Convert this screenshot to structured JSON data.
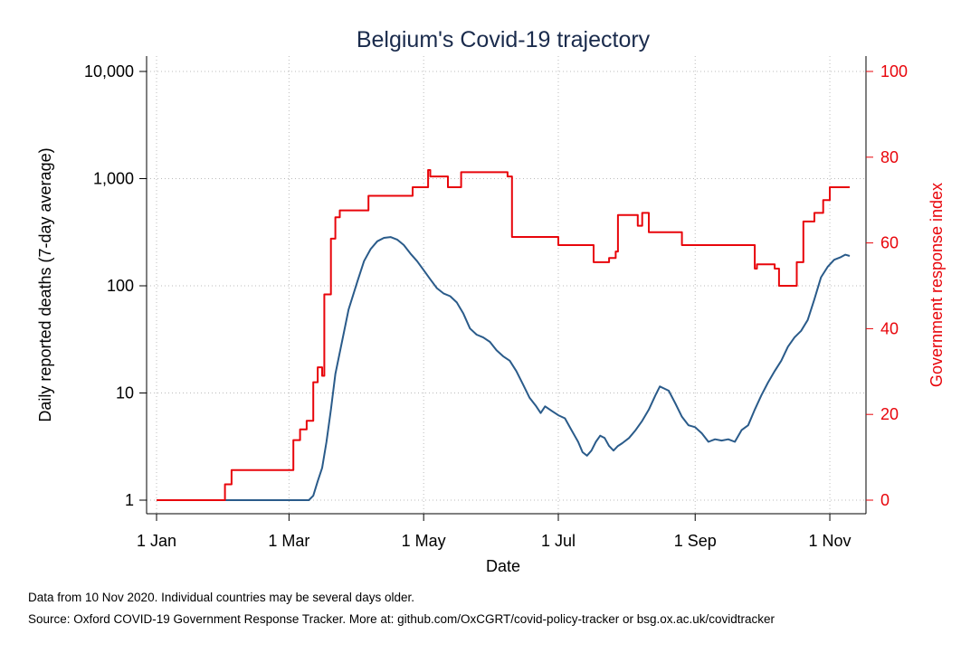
{
  "chart_data": {
    "type": "line",
    "title": "Belgium's Covid-19 trajectory",
    "xlabel": "Date",
    "ylabel_left": "Daily reported deaths (7-day average)",
    "ylabel_right": "Government response index",
    "x_range": [
      "2020-01-01",
      "2020-11-10"
    ],
    "x_ticks": [
      {
        "date": "2020-01-01",
        "label": "1 Jan"
      },
      {
        "date": "2020-03-01",
        "label": "1 Mar"
      },
      {
        "date": "2020-05-01",
        "label": "1 May"
      },
      {
        "date": "2020-07-01",
        "label": "1 Jul"
      },
      {
        "date": "2020-09-01",
        "label": "1 Sep"
      },
      {
        "date": "2020-11-01",
        "label": "1 Nov"
      }
    ],
    "y_left": {
      "scale": "log",
      "range": [
        1,
        10000
      ],
      "ticks": [
        {
          "value": 1,
          "label": "1"
        },
        {
          "value": 10,
          "label": "10"
        },
        {
          "value": 100,
          "label": "100"
        },
        {
          "value": 1000,
          "label": "1,000"
        },
        {
          "value": 10000,
          "label": "10,000"
        }
      ]
    },
    "y_right": {
      "scale": "linear",
      "range": [
        0,
        100
      ],
      "ticks": [
        {
          "value": 0,
          "label": "0"
        },
        {
          "value": 20,
          "label": "20"
        },
        {
          "value": 40,
          "label": "40"
        },
        {
          "value": 60,
          "label": "60"
        },
        {
          "value": 80,
          "label": "80"
        },
        {
          "value": 100,
          "label": "100"
        }
      ]
    },
    "grid": true,
    "series": [
      {
        "axis": "left",
        "color": "#2a5b8a",
        "shape": "line",
        "points": [
          [
            "2020-01-01",
            1
          ],
          [
            "2020-03-10",
            1
          ],
          [
            "2020-03-12",
            1.1
          ],
          [
            "2020-03-14",
            1.5
          ],
          [
            "2020-03-16",
            2
          ],
          [
            "2020-03-18",
            3.5
          ],
          [
            "2020-03-20",
            7
          ],
          [
            "2020-03-22",
            15
          ],
          [
            "2020-03-25",
            30
          ],
          [
            "2020-03-28",
            60
          ],
          [
            "2020-04-01",
            110
          ],
          [
            "2020-04-04",
            170
          ],
          [
            "2020-04-07",
            220
          ],
          [
            "2020-04-10",
            260
          ],
          [
            "2020-04-13",
            280
          ],
          [
            "2020-04-16",
            285
          ],
          [
            "2020-04-19",
            270
          ],
          [
            "2020-04-22",
            240
          ],
          [
            "2020-04-25",
            200
          ],
          [
            "2020-04-28",
            170
          ],
          [
            "2020-05-01",
            140
          ],
          [
            "2020-05-04",
            115
          ],
          [
            "2020-05-07",
            95
          ],
          [
            "2020-05-10",
            85
          ],
          [
            "2020-05-13",
            80
          ],
          [
            "2020-05-16",
            70
          ],
          [
            "2020-05-19",
            55
          ],
          [
            "2020-05-22",
            40
          ],
          [
            "2020-05-25",
            35
          ],
          [
            "2020-05-28",
            33
          ],
          [
            "2020-05-31",
            30
          ],
          [
            "2020-06-03",
            25
          ],
          [
            "2020-06-06",
            22
          ],
          [
            "2020-06-09",
            20
          ],
          [
            "2020-06-12",
            16
          ],
          [
            "2020-06-15",
            12
          ],
          [
            "2020-06-18",
            9
          ],
          [
            "2020-06-21",
            7.5
          ],
          [
            "2020-06-23",
            6.5
          ],
          [
            "2020-06-25",
            7.5
          ],
          [
            "2020-06-28",
            6.8
          ],
          [
            "2020-07-01",
            6.2
          ],
          [
            "2020-07-04",
            5.8
          ],
          [
            "2020-07-07",
            4.5
          ],
          [
            "2020-07-10",
            3.5
          ],
          [
            "2020-07-12",
            2.8
          ],
          [
            "2020-07-14",
            2.6
          ],
          [
            "2020-07-16",
            2.9
          ],
          [
            "2020-07-18",
            3.5
          ],
          [
            "2020-07-20",
            4.0
          ],
          [
            "2020-07-22",
            3.8
          ],
          [
            "2020-07-24",
            3.2
          ],
          [
            "2020-07-26",
            2.9
          ],
          [
            "2020-07-28",
            3.2
          ],
          [
            "2020-07-30",
            3.4
          ],
          [
            "2020-08-02",
            3.8
          ],
          [
            "2020-08-05",
            4.5
          ],
          [
            "2020-08-08",
            5.5
          ],
          [
            "2020-08-11",
            7.0
          ],
          [
            "2020-08-14",
            9.5
          ],
          [
            "2020-08-16",
            11.5
          ],
          [
            "2020-08-18",
            11.0
          ],
          [
            "2020-08-20",
            10.5
          ],
          [
            "2020-08-23",
            8.0
          ],
          [
            "2020-08-26",
            6.0
          ],
          [
            "2020-08-29",
            5.0
          ],
          [
            "2020-09-01",
            4.8
          ],
          [
            "2020-09-04",
            4.2
          ],
          [
            "2020-09-07",
            3.5
          ],
          [
            "2020-09-10",
            3.7
          ],
          [
            "2020-09-13",
            3.6
          ],
          [
            "2020-09-16",
            3.7
          ],
          [
            "2020-09-19",
            3.5
          ],
          [
            "2020-09-22",
            4.5
          ],
          [
            "2020-09-25",
            5.0
          ],
          [
            "2020-09-28",
            7.0
          ],
          [
            "2020-10-01",
            9.5
          ],
          [
            "2020-10-04",
            12.5
          ],
          [
            "2020-10-07",
            16
          ],
          [
            "2020-10-10",
            20
          ],
          [
            "2020-10-13",
            27
          ],
          [
            "2020-10-16",
            33
          ],
          [
            "2020-10-19",
            38
          ],
          [
            "2020-10-22",
            48
          ],
          [
            "2020-10-25",
            75
          ],
          [
            "2020-10-28",
            120
          ],
          [
            "2020-10-31",
            150
          ],
          [
            "2020-11-03",
            175
          ],
          [
            "2020-11-06",
            185
          ],
          [
            "2020-11-08",
            195
          ],
          [
            "2020-11-10",
            190
          ]
        ]
      },
      {
        "axis": "right",
        "color": "#e8050b",
        "shape": "step",
        "points": [
          [
            "2020-01-01",
            0
          ],
          [
            "2020-02-01",
            3.7
          ],
          [
            "2020-02-04",
            7
          ],
          [
            "2020-03-03",
            14
          ],
          [
            "2020-03-06",
            16.5
          ],
          [
            "2020-03-09",
            18.5
          ],
          [
            "2020-03-12",
            27.5
          ],
          [
            "2020-03-14",
            31
          ],
          [
            "2020-03-16",
            29
          ],
          [
            "2020-03-17",
            48
          ],
          [
            "2020-03-20",
            61
          ],
          [
            "2020-03-22",
            66
          ],
          [
            "2020-03-24",
            67.6
          ],
          [
            "2020-04-06",
            71
          ],
          [
            "2020-04-26",
            73
          ],
          [
            "2020-05-03",
            77
          ],
          [
            "2020-05-04",
            75.5
          ],
          [
            "2020-05-12",
            73
          ],
          [
            "2020-05-18",
            76.5
          ],
          [
            "2020-06-08",
            75.5
          ],
          [
            "2020-06-10",
            61.4
          ],
          [
            "2020-07-01",
            59.5
          ],
          [
            "2020-07-17",
            55.5
          ],
          [
            "2020-07-24",
            56.5
          ],
          [
            "2020-07-27",
            58
          ],
          [
            "2020-07-28",
            66.5
          ],
          [
            "2020-08-06",
            64
          ],
          [
            "2020-08-08",
            67
          ],
          [
            "2020-08-11",
            62.5
          ],
          [
            "2020-08-26",
            59.5
          ],
          [
            "2020-09-28",
            54
          ],
          [
            "2020-09-29",
            55
          ],
          [
            "2020-10-07",
            54
          ],
          [
            "2020-10-09",
            50
          ],
          [
            "2020-10-17",
            55.5
          ],
          [
            "2020-10-20",
            65
          ],
          [
            "2020-10-25",
            67
          ],
          [
            "2020-10-29",
            70
          ],
          [
            "2020-11-01",
            73
          ],
          [
            "2020-11-10",
            73
          ]
        ]
      }
    ]
  },
  "notes": {
    "line1": "Data from 10 Nov 2020. Individual countries may be several days older.",
    "line2": "Source: Oxford COVID-19 Government Response Tracker. More at: github.com/OxCGRT/covid-policy-tracker or bsg.ox.ac.uk/covidtracker"
  }
}
